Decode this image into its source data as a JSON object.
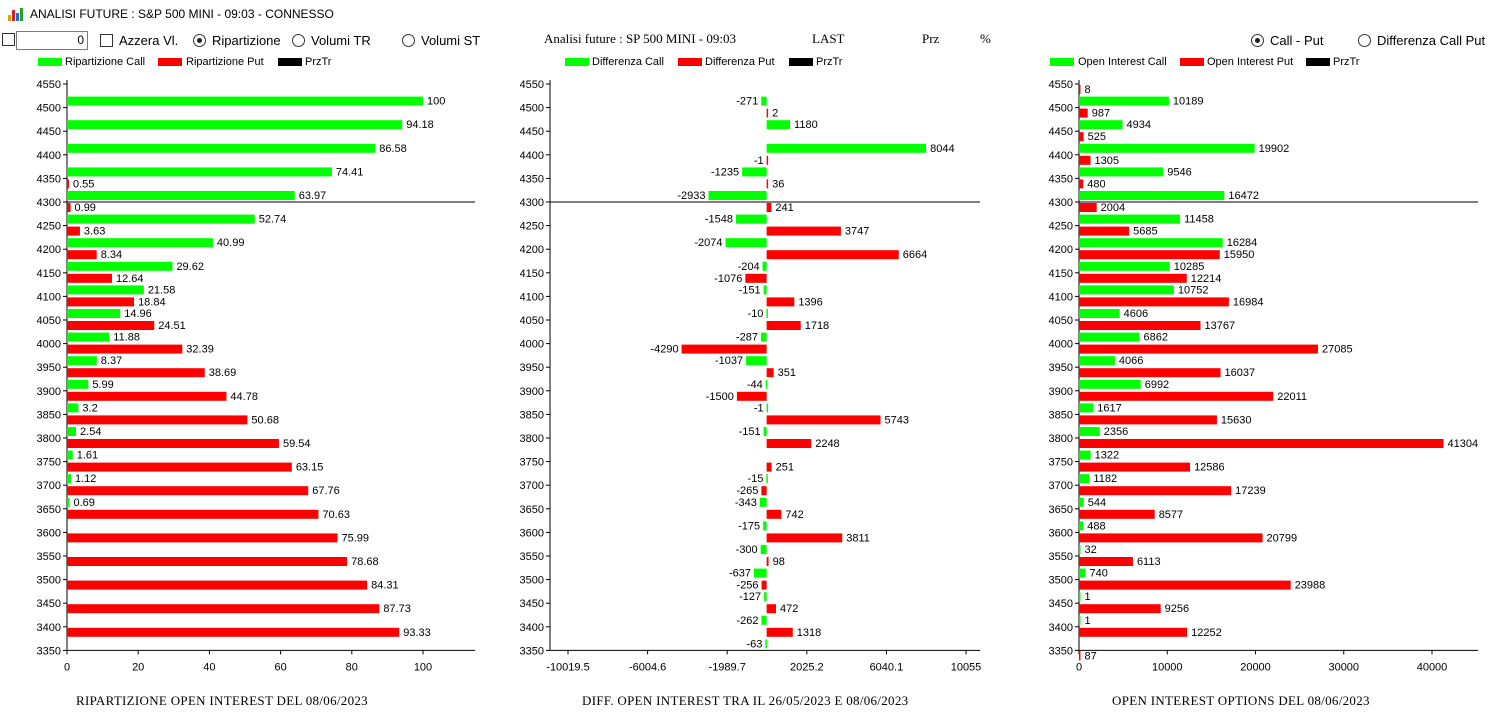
{
  "window": {
    "title": "ANALISI FUTURE : S&P 500 MINI - 09:03 - CONNESSO"
  },
  "controls": {
    "value": "0",
    "azzera": "Azzera Vl.",
    "ripartizione": "Ripartizione",
    "volumi_tr": "Volumi TR",
    "volumi_st": "Volumi ST",
    "call_put": "Call - Put",
    "diff_call_put": "Differenza Call Put"
  },
  "header": {
    "title": "Analisi future : SP 500 MINI - 09:03",
    "last": "LAST",
    "prz": "Prz",
    "pct": "%"
  },
  "colors": {
    "call": "#00ff00",
    "put": "#ff0000",
    "przTr": "#000000"
  },
  "panels": [
    {
      "id": "ripartizione",
      "legend": [
        "Ripartizione Call",
        "Ripartizione Put",
        "PrzTr"
      ],
      "xticks": [
        "0",
        "20",
        "40",
        "60",
        "80",
        "100"
      ],
      "xlim": [
        0,
        120
      ],
      "caption": "RIPARTIZIONE OPEN INTEREST DEL 08/06/2023",
      "call": {
        "4500": "100",
        "4450": "94.18",
        "4400": "86.58",
        "4350": "74.41",
        "4300": "63.97",
        "4250": "52.74",
        "4200": "40.99",
        "4150": "29.62",
        "4100": "21.58",
        "4050": "14.96",
        "4000": "11.88",
        "3950": "8.37",
        "3900": "5.99",
        "3850": "3.2",
        "3800": "2.54",
        "3750": "1.61",
        "3700": "1.12",
        "3650": "0.69"
      },
      "put": {
        "4350": "0.55",
        "4300": "0.99",
        "4250": "3.63",
        "4200": "8.34",
        "4150": "12.64",
        "4100": "18.84",
        "4050": "24.51",
        "4000": "32.39",
        "3950": "38.69",
        "3900": "44.78",
        "3850": "50.68",
        "3800": "59.54",
        "3750": "63.15",
        "3700": "67.76",
        "3650": "70.63",
        "3600": "75.99",
        "3550": "78.68",
        "3500": "84.31",
        "3450": "87.73",
        "3400": "93.33"
      }
    },
    {
      "id": "differenza",
      "legend": [
        "Differenza Call",
        "Differenza Put",
        "PrzTr"
      ],
      "xticks": [
        "-10019.5",
        "-6004.6",
        "-1989.7",
        "2025.2",
        "6040.1",
        "10055"
      ],
      "xlim": [
        -10019.5,
        10055
      ],
      "caption": "DIFF. OPEN INTEREST TRA IL 26/05/2023 E 08/06/2023",
      "call": {
        "4500": "-271",
        "4450": "1180",
        "4400": "8044",
        "4350": "-1235",
        "4300": "-2933",
        "4250": "-1548",
        "4200": "-2074",
        "4150": "-204",
        "4100": "-151",
        "4050": "-10",
        "4000": "-287",
        "3950": "-1037",
        "3900": "-44",
        "3850": "-1",
        "3800": "-151",
        "3700": "-15",
        "3650": "-343",
        "3600": "-175",
        "3550": "-300",
        "3500": "-637",
        "3450": "-127",
        "3400": "-262",
        "3350": "-63"
      },
      "put": {
        "4500": "2",
        "4400": "-1",
        "4350": "36",
        "4300": "241",
        "4250": "3747",
        "4200": "6664",
        "4150": "-1076",
        "4100": "1396",
        "4050": "1718",
        "4000": "-4290",
        "3950": "351",
        "3900": "-1500",
        "3850": "5743",
        "3800": "2248",
        "3750": "251",
        "3700": "-265",
        "3650": "742",
        "3600": "3811",
        "3550": "98",
        "3500": "-256",
        "3450": "472",
        "3400": "1318"
      }
    },
    {
      "id": "openinterest",
      "legend": [
        "Open Interest Call",
        "Open Interest Put",
        "PrzTr"
      ],
      "xticks": [
        "0",
        "10000",
        "20000",
        "30000",
        "40000"
      ],
      "xlim": [
        0,
        43000
      ],
      "caption": "OPEN INTEREST OPTIONS DEL 08/06/2023",
      "call": {
        "4500": "10189",
        "4450": "4934",
        "4400": "19902",
        "4350": "9546",
        "4300": "16472",
        "4250": "11458",
        "4200": "16284",
        "4150": "10285",
        "4100": "10752",
        "4050": "4606",
        "4000": "6862",
        "3950": "4066",
        "3900": "6992",
        "3850": "1617",
        "3800": "2356",
        "3750": "1322",
        "3700": "1182",
        "3650": "544",
        "3600": "488",
        "3550": "32",
        "3500": "740",
        "3450": "1",
        "3400": "1"
      },
      "put": {
        "4550": "8",
        "4500": "987",
        "4450": "525",
        "4400": "1305",
        "4350": "480",
        "4300": "2004",
        "4250": "5685",
        "4200": "15950",
        "4150": "12214",
        "4100": "16984",
        "4050": "13767",
        "4000": "27085",
        "3950": "16037",
        "3900": "22011",
        "3850": "15630",
        "3800": "41304",
        "3750": "12586",
        "3700": "17239",
        "3650": "8577",
        "3600": "20799",
        "3550": "6113",
        "3500": "23988",
        "3450": "9256",
        "3400": "12252",
        "3350": "87"
      }
    }
  ],
  "yticks": [
    "4550",
    "4500",
    "4450",
    "4400",
    "4350",
    "4300",
    "4250",
    "4200",
    "4150",
    "4100",
    "4050",
    "4000",
    "3950",
    "3900",
    "3850",
    "3800",
    "3750",
    "3700",
    "3650",
    "3600",
    "3550",
    "3500",
    "3450",
    "3400",
    "3350"
  ],
  "przTr": 4300
}
